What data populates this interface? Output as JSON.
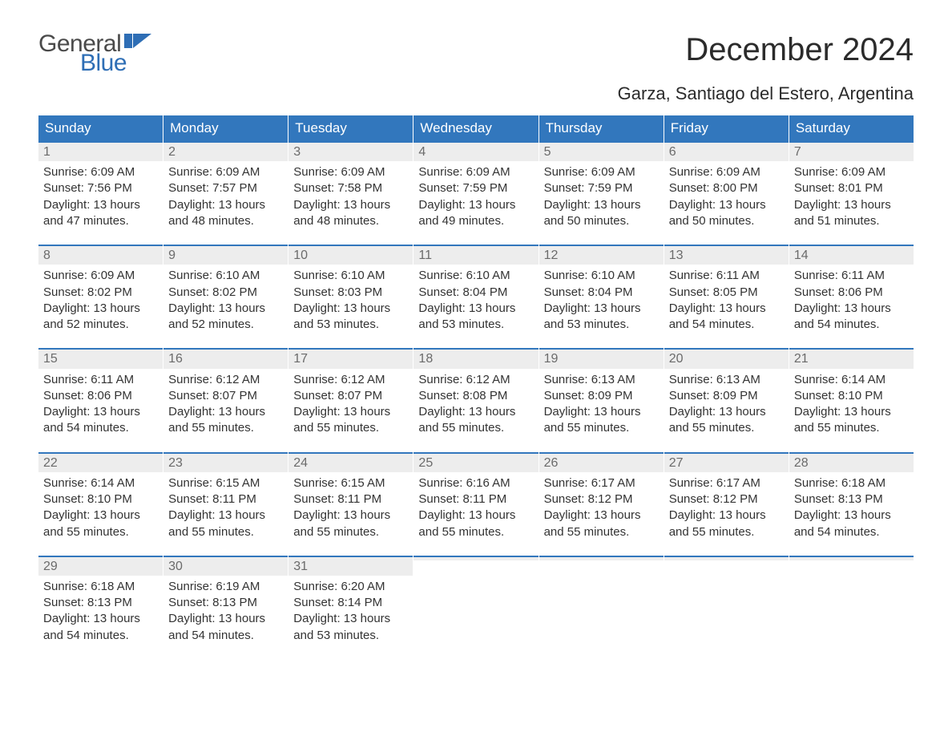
{
  "brand": {
    "text1": "General",
    "text2": "Blue",
    "icon_color": "#2e6eb5",
    "text1_color": "#4a4a4a"
  },
  "title": "December 2024",
  "subtitle": "Garza, Santiago del Estero, Argentina",
  "colors": {
    "header_bg": "#3277bd",
    "header_text": "#ffffff",
    "daynum_bg": "#ededed",
    "daynum_text": "#6b6b6b",
    "daynum_border": "#3277bd",
    "body_text": "#333333",
    "page_bg": "#ffffff"
  },
  "day_headers": [
    "Sunday",
    "Monday",
    "Tuesday",
    "Wednesday",
    "Thursday",
    "Friday",
    "Saturday"
  ],
  "weeks": [
    [
      {
        "n": "1",
        "sr": "Sunrise: 6:09 AM",
        "ss": "Sunset: 7:56 PM",
        "d1": "Daylight: 13 hours",
        "d2": "and 47 minutes."
      },
      {
        "n": "2",
        "sr": "Sunrise: 6:09 AM",
        "ss": "Sunset: 7:57 PM",
        "d1": "Daylight: 13 hours",
        "d2": "and 48 minutes."
      },
      {
        "n": "3",
        "sr": "Sunrise: 6:09 AM",
        "ss": "Sunset: 7:58 PM",
        "d1": "Daylight: 13 hours",
        "d2": "and 48 minutes."
      },
      {
        "n": "4",
        "sr": "Sunrise: 6:09 AM",
        "ss": "Sunset: 7:59 PM",
        "d1": "Daylight: 13 hours",
        "d2": "and 49 minutes."
      },
      {
        "n": "5",
        "sr": "Sunrise: 6:09 AM",
        "ss": "Sunset: 7:59 PM",
        "d1": "Daylight: 13 hours",
        "d2": "and 50 minutes."
      },
      {
        "n": "6",
        "sr": "Sunrise: 6:09 AM",
        "ss": "Sunset: 8:00 PM",
        "d1": "Daylight: 13 hours",
        "d2": "and 50 minutes."
      },
      {
        "n": "7",
        "sr": "Sunrise: 6:09 AM",
        "ss": "Sunset: 8:01 PM",
        "d1": "Daylight: 13 hours",
        "d2": "and 51 minutes."
      }
    ],
    [
      {
        "n": "8",
        "sr": "Sunrise: 6:09 AM",
        "ss": "Sunset: 8:02 PM",
        "d1": "Daylight: 13 hours",
        "d2": "and 52 minutes."
      },
      {
        "n": "9",
        "sr": "Sunrise: 6:10 AM",
        "ss": "Sunset: 8:02 PM",
        "d1": "Daylight: 13 hours",
        "d2": "and 52 minutes."
      },
      {
        "n": "10",
        "sr": "Sunrise: 6:10 AM",
        "ss": "Sunset: 8:03 PM",
        "d1": "Daylight: 13 hours",
        "d2": "and 53 minutes."
      },
      {
        "n": "11",
        "sr": "Sunrise: 6:10 AM",
        "ss": "Sunset: 8:04 PM",
        "d1": "Daylight: 13 hours",
        "d2": "and 53 minutes."
      },
      {
        "n": "12",
        "sr": "Sunrise: 6:10 AM",
        "ss": "Sunset: 8:04 PM",
        "d1": "Daylight: 13 hours",
        "d2": "and 53 minutes."
      },
      {
        "n": "13",
        "sr": "Sunrise: 6:11 AM",
        "ss": "Sunset: 8:05 PM",
        "d1": "Daylight: 13 hours",
        "d2": "and 54 minutes."
      },
      {
        "n": "14",
        "sr": "Sunrise: 6:11 AM",
        "ss": "Sunset: 8:06 PM",
        "d1": "Daylight: 13 hours",
        "d2": "and 54 minutes."
      }
    ],
    [
      {
        "n": "15",
        "sr": "Sunrise: 6:11 AM",
        "ss": "Sunset: 8:06 PM",
        "d1": "Daylight: 13 hours",
        "d2": "and 54 minutes."
      },
      {
        "n": "16",
        "sr": "Sunrise: 6:12 AM",
        "ss": "Sunset: 8:07 PM",
        "d1": "Daylight: 13 hours",
        "d2": "and 55 minutes."
      },
      {
        "n": "17",
        "sr": "Sunrise: 6:12 AM",
        "ss": "Sunset: 8:07 PM",
        "d1": "Daylight: 13 hours",
        "d2": "and 55 minutes."
      },
      {
        "n": "18",
        "sr": "Sunrise: 6:12 AM",
        "ss": "Sunset: 8:08 PM",
        "d1": "Daylight: 13 hours",
        "d2": "and 55 minutes."
      },
      {
        "n": "19",
        "sr": "Sunrise: 6:13 AM",
        "ss": "Sunset: 8:09 PM",
        "d1": "Daylight: 13 hours",
        "d2": "and 55 minutes."
      },
      {
        "n": "20",
        "sr": "Sunrise: 6:13 AM",
        "ss": "Sunset: 8:09 PM",
        "d1": "Daylight: 13 hours",
        "d2": "and 55 minutes."
      },
      {
        "n": "21",
        "sr": "Sunrise: 6:14 AM",
        "ss": "Sunset: 8:10 PM",
        "d1": "Daylight: 13 hours",
        "d2": "and 55 minutes."
      }
    ],
    [
      {
        "n": "22",
        "sr": "Sunrise: 6:14 AM",
        "ss": "Sunset: 8:10 PM",
        "d1": "Daylight: 13 hours",
        "d2": "and 55 minutes."
      },
      {
        "n": "23",
        "sr": "Sunrise: 6:15 AM",
        "ss": "Sunset: 8:11 PM",
        "d1": "Daylight: 13 hours",
        "d2": "and 55 minutes."
      },
      {
        "n": "24",
        "sr": "Sunrise: 6:15 AM",
        "ss": "Sunset: 8:11 PM",
        "d1": "Daylight: 13 hours",
        "d2": "and 55 minutes."
      },
      {
        "n": "25",
        "sr": "Sunrise: 6:16 AM",
        "ss": "Sunset: 8:11 PM",
        "d1": "Daylight: 13 hours",
        "d2": "and 55 minutes."
      },
      {
        "n": "26",
        "sr": "Sunrise: 6:17 AM",
        "ss": "Sunset: 8:12 PM",
        "d1": "Daylight: 13 hours",
        "d2": "and 55 minutes."
      },
      {
        "n": "27",
        "sr": "Sunrise: 6:17 AM",
        "ss": "Sunset: 8:12 PM",
        "d1": "Daylight: 13 hours",
        "d2": "and 55 minutes."
      },
      {
        "n": "28",
        "sr": "Sunrise: 6:18 AM",
        "ss": "Sunset: 8:13 PM",
        "d1": "Daylight: 13 hours",
        "d2": "and 54 minutes."
      }
    ],
    [
      {
        "n": "29",
        "sr": "Sunrise: 6:18 AM",
        "ss": "Sunset: 8:13 PM",
        "d1": "Daylight: 13 hours",
        "d2": "and 54 minutes."
      },
      {
        "n": "30",
        "sr": "Sunrise: 6:19 AM",
        "ss": "Sunset: 8:13 PM",
        "d1": "Daylight: 13 hours",
        "d2": "and 54 minutes."
      },
      {
        "n": "31",
        "sr": "Sunrise: 6:20 AM",
        "ss": "Sunset: 8:14 PM",
        "d1": "Daylight: 13 hours",
        "d2": "and 53 minutes."
      },
      {
        "empty": true
      },
      {
        "empty": true
      },
      {
        "empty": true
      },
      {
        "empty": true
      }
    ]
  ]
}
